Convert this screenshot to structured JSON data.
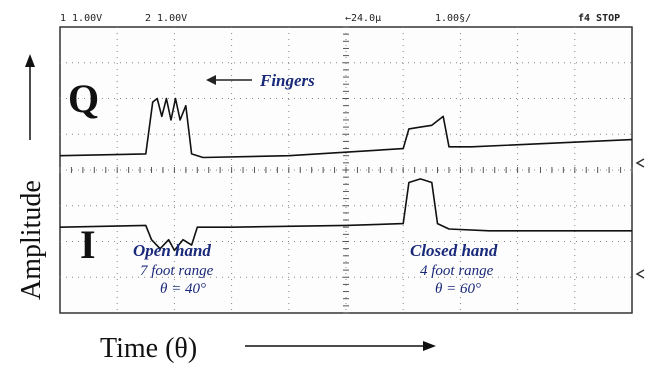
{
  "header": {
    "ch1": "1  1.00V",
    "ch2": "2  1.00V",
    "delay": "←24.0µ",
    "timebase": "1.00§/",
    "mode": "f4  STOP"
  },
  "chart_data": {
    "type": "line",
    "title": "",
    "xlabel": "Time (θ)",
    "ylabel": "Amplitude",
    "xlim": [
      0,
      10
    ],
    "ylim": [
      -4,
      4
    ],
    "grid": true,
    "series": [
      {
        "name": "Q",
        "x": [
          0,
          1.5,
          1.62,
          1.7,
          1.78,
          1.86,
          1.94,
          2.02,
          2.1,
          2.2,
          2.3,
          2.5,
          4,
          6.0,
          6.1,
          6.3,
          6.5,
          6.7,
          6.8,
          7.2,
          10
        ],
        "y": [
          0.4,
          0.45,
          1.9,
          2.0,
          1.5,
          2.0,
          1.4,
          2.0,
          1.4,
          1.8,
          0.45,
          0.35,
          0.4,
          0.6,
          1.15,
          1.2,
          1.25,
          1.5,
          0.65,
          0.65,
          0.85
        ]
      },
      {
        "name": "I",
        "x": [
          0,
          1.5,
          1.6,
          1.75,
          1.9,
          2.0,
          2.15,
          2.3,
          2.4,
          3,
          5,
          6.0,
          6.1,
          6.3,
          6.5,
          6.6,
          6.8,
          7.5,
          10
        ],
        "y": [
          -1.6,
          -1.55,
          -1.95,
          -2.2,
          -1.95,
          -2.25,
          -1.95,
          -2.1,
          -1.6,
          -1.6,
          -1.55,
          -1.5,
          -0.35,
          -0.25,
          -0.35,
          -1.5,
          -1.65,
          -1.7,
          -1.7
        ]
      }
    ],
    "annotations": [
      {
        "text": "Fingers"
      },
      {
        "text": "Open hand"
      },
      {
        "text": "7 foot range"
      },
      {
        "text": "θ = 40°"
      },
      {
        "text": "Closed hand"
      },
      {
        "text": "4 foot range"
      },
      {
        "text": "θ = 60°"
      }
    ]
  },
  "labels": {
    "q": "Q",
    "i": "I"
  }
}
